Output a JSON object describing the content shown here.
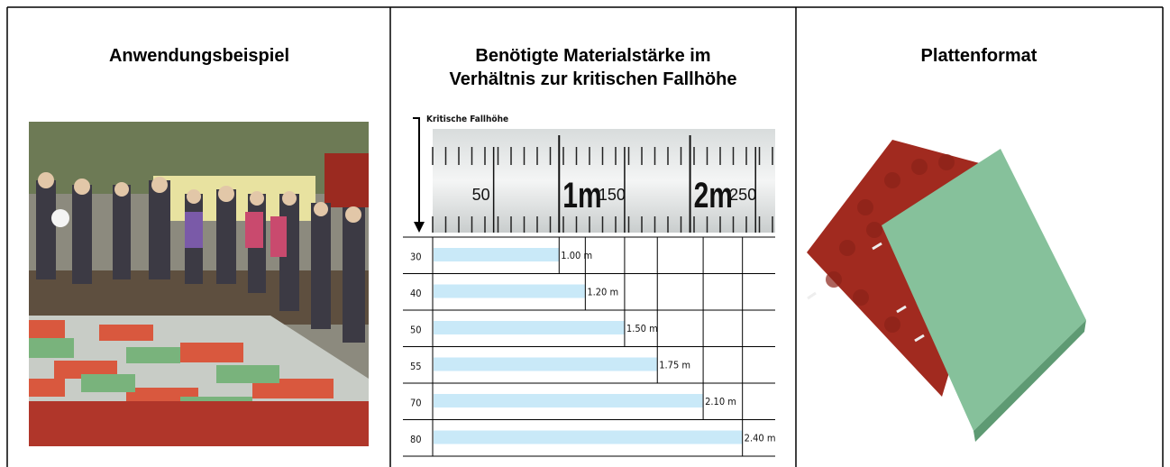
{
  "table": {
    "headers": [
      "Anwendungsbeispiel",
      [
        "Benötigte Materialstärke im",
        "Verhältnis zur kritischen Fallhöhe"
      ],
      "Plattenformat"
    ]
  },
  "chart_data": {
    "type": "bar",
    "axis_label": "Kritische Fallhöhe",
    "categories": [
      "30",
      "40",
      "50",
      "55",
      "70",
      "80"
    ],
    "values": [
      1.0,
      1.2,
      1.5,
      1.75,
      2.1,
      2.4
    ],
    "value_labels": [
      "1.00 m",
      "1.20 m",
      "1.50 m",
      "1.75 m",
      "2.10 m",
      "2.40 m"
    ],
    "color": "#c9e9f8",
    "xlim": [
      0,
      2.65
    ],
    "xticks": [
      {
        "value": 0.5,
        "label": "50"
      },
      {
        "value": 1,
        "label": "1m"
      },
      {
        "value": 1.5,
        "label": "150"
      },
      {
        "value": 2,
        "label": "2m"
      },
      {
        "value": 2.5,
        "label": "250"
      }
    ]
  }
}
